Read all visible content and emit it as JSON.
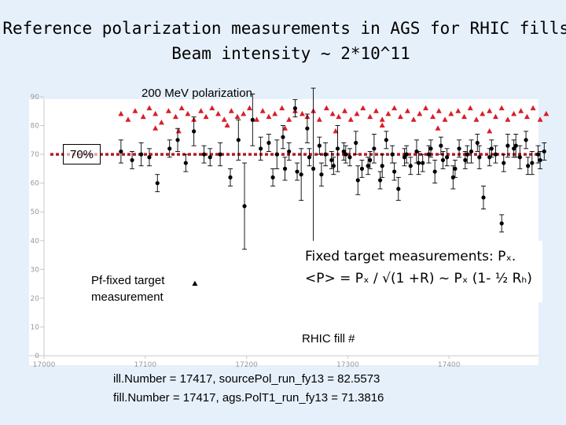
{
  "page": {
    "title_line1": "Reference polarization measurements in AGS for RHIC fills.",
    "title_line2": "Beam intensity ~ 2*10^11"
  },
  "chart": {
    "subtitle": "200 MeV polarization",
    "reference_label": "70%",
    "pf_label_line1": "Pf-fixed target",
    "pf_label_line2": "measurement",
    "note_line1": "Fixed target measurements: Pₓ.",
    "note_line2": "<P> = Pₓ / √(1 +R) ~ Pₓ (1- ½ Rₕ)",
    "readout1": "ill.Number = 17417,  sourcePol_run_fy13 = 82.5573",
    "readout2": "fill.Number = 17417,  ags.PolT1_run_fy13 = 71.3816",
    "colors": {
      "source": "#d91e2a",
      "ags": "#000000",
      "reference_line": "#b01c2e"
    }
  },
  "chart_data": {
    "type": "scatter",
    "title": "200 MeV polarization",
    "xlabel": "RHIC fill #",
    "ylabel": "",
    "xlim": [
      17000,
      17500
    ],
    "ylim": [
      0,
      90
    ],
    "x_ticks": [
      17000,
      17100,
      17200,
      17300,
      17400
    ],
    "x_tick_labels": [
      "17000",
      "17100",
      "17200",
      "17300",
      "17400"
    ],
    "y_ticks": [
      0,
      10,
      20,
      30,
      40,
      50,
      60,
      70,
      80,
      90
    ],
    "y_tick_labels": [
      "0",
      "10",
      "20",
      "30",
      "40",
      "50",
      "60",
      "70",
      "80",
      "90"
    ],
    "reference_line": 70,
    "grid": false,
    "series": [
      {
        "marker": "triangle",
        "color": "#d91e2a",
        "x": [
          17076,
          17083,
          17090,
          17098,
          17104,
          17110,
          17116,
          17123,
          17130,
          17136,
          17142,
          17148,
          17155,
          17160,
          17166,
          17172,
          17178,
          17185,
          17191,
          17197,
          17203,
          17210,
          17216,
          17222,
          17228,
          17235,
          17242,
          17248,
          17255,
          17260,
          17266,
          17272,
          17279,
          17285,
          17291,
          17297,
          17303,
          17309,
          17315,
          17322,
          17328,
          17334,
          17340,
          17346,
          17352,
          17359,
          17365,
          17371,
          17377,
          17384,
          17390,
          17396,
          17402,
          17409,
          17415,
          17421,
          17427,
          17433,
          17440,
          17446,
          17452,
          17458,
          17464,
          17471,
          17477,
          17483,
          17490,
          17496,
          17110,
          17133,
          17181,
          17238,
          17288,
          17334,
          17389,
          17440
        ],
        "y": [
          84,
          82,
          85,
          83,
          86,
          84,
          81,
          85,
          83,
          86,
          84,
          82,
          85,
          83,
          86,
          84,
          82,
          85,
          83,
          84,
          86,
          82,
          85,
          83,
          84,
          86,
          82,
          85,
          84,
          83,
          85,
          82,
          86,
          84,
          83,
          85,
          82,
          84,
          86,
          83,
          85,
          82,
          84,
          86,
          83,
          85,
          82,
          84,
          86,
          83,
          85,
          82,
          84,
          85,
          83,
          86,
          82,
          84,
          85,
          83,
          86,
          82,
          84,
          85,
          83,
          86,
          82,
          84,
          79,
          78,
          80,
          79,
          78,
          80,
          79,
          78
        ]
      },
      {
        "marker": "circle",
        "color": "#000000",
        "error_bars": true,
        "x": [
          17076,
          17087,
          17096,
          17104,
          17112,
          17124,
          17132,
          17140,
          17148,
          17158,
          17164,
          17174,
          17184,
          17192,
          17198,
          17206,
          17214,
          17222,
          17230,
          17236,
          17242,
          17248,
          17254,
          17260,
          17266,
          17272,
          17278,
          17284,
          17290,
          17296,
          17302,
          17308,
          17314,
          17320,
          17326,
          17332,
          17338,
          17344,
          17350,
          17356,
          17362,
          17368,
          17374,
          17380,
          17386,
          17392,
          17398,
          17404,
          17410,
          17416,
          17422,
          17428,
          17434,
          17440,
          17446,
          17452,
          17458,
          17464,
          17470,
          17476,
          17482,
          17488,
          17494,
          17226,
          17238,
          17250,
          17262,
          17274,
          17286,
          17298,
          17310,
          17322,
          17334,
          17346,
          17358,
          17370,
          17382,
          17394,
          17406,
          17418,
          17430,
          17442,
          17454,
          17466,
          17478,
          17490
        ],
        "y": [
          71,
          68,
          70,
          69,
          60,
          72,
          75,
          67,
          78,
          70,
          69,
          70,
          62,
          75,
          52,
          82,
          72,
          74,
          70,
          76,
          71,
          86,
          63,
          79,
          65,
          73,
          70,
          68,
          72,
          71,
          69,
          74,
          65,
          66,
          72,
          61,
          75,
          70,
          58,
          69,
          66,
          71,
          67,
          70,
          64,
          73,
          69,
          62,
          72,
          68,
          71,
          74,
          55,
          69,
          70,
          46,
          73,
          72,
          69,
          75,
          67,
          70,
          71,
          62,
          65,
          64,
          69,
          63,
          66,
          70,
          61,
          68,
          66,
          64,
          70,
          67,
          72,
          68,
          65,
          70,
          69,
          72,
          67,
          73,
          66,
          68
        ],
        "err": [
          4,
          3,
          4,
          3,
          3,
          3,
          4,
          3,
          5,
          3,
          3,
          4,
          3,
          7,
          15,
          9,
          4,
          3,
          5,
          4,
          3,
          3,
          9,
          5,
          28,
          3,
          4,
          3,
          8,
          3,
          3,
          4,
          3,
          3,
          5,
          3,
          3,
          3,
          4,
          3,
          3,
          4,
          3,
          3,
          4,
          3,
          3,
          4,
          3,
          3,
          4,
          3,
          4,
          3,
          3,
          3,
          4,
          3,
          4,
          3,
          4,
          3,
          3,
          3,
          4,
          3,
          3,
          4,
          3,
          3,
          5,
          3,
          4,
          3,
          3,
          4,
          3,
          3,
          3,
          3,
          4,
          3,
          3,
          4,
          3,
          3
        ]
      },
      {
        "marker": "triangle",
        "color": "#000000",
        "x": [
          17149
        ],
        "y": [
          25
        ]
      }
    ]
  }
}
